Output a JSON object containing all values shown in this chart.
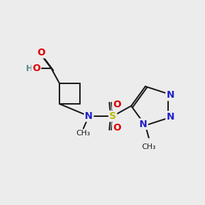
{
  "bg_color": "#ececec",
  "bond_color": "#1a1a1a",
  "bond_width": 1.5,
  "atom_colors": {
    "C": "#1a1a1a",
    "H": "#5a8a8a",
    "N": "#2020cc",
    "O": "#dd0000",
    "S": "#bbbb00"
  },
  "font_size": 10,
  "font_size_small": 9
}
